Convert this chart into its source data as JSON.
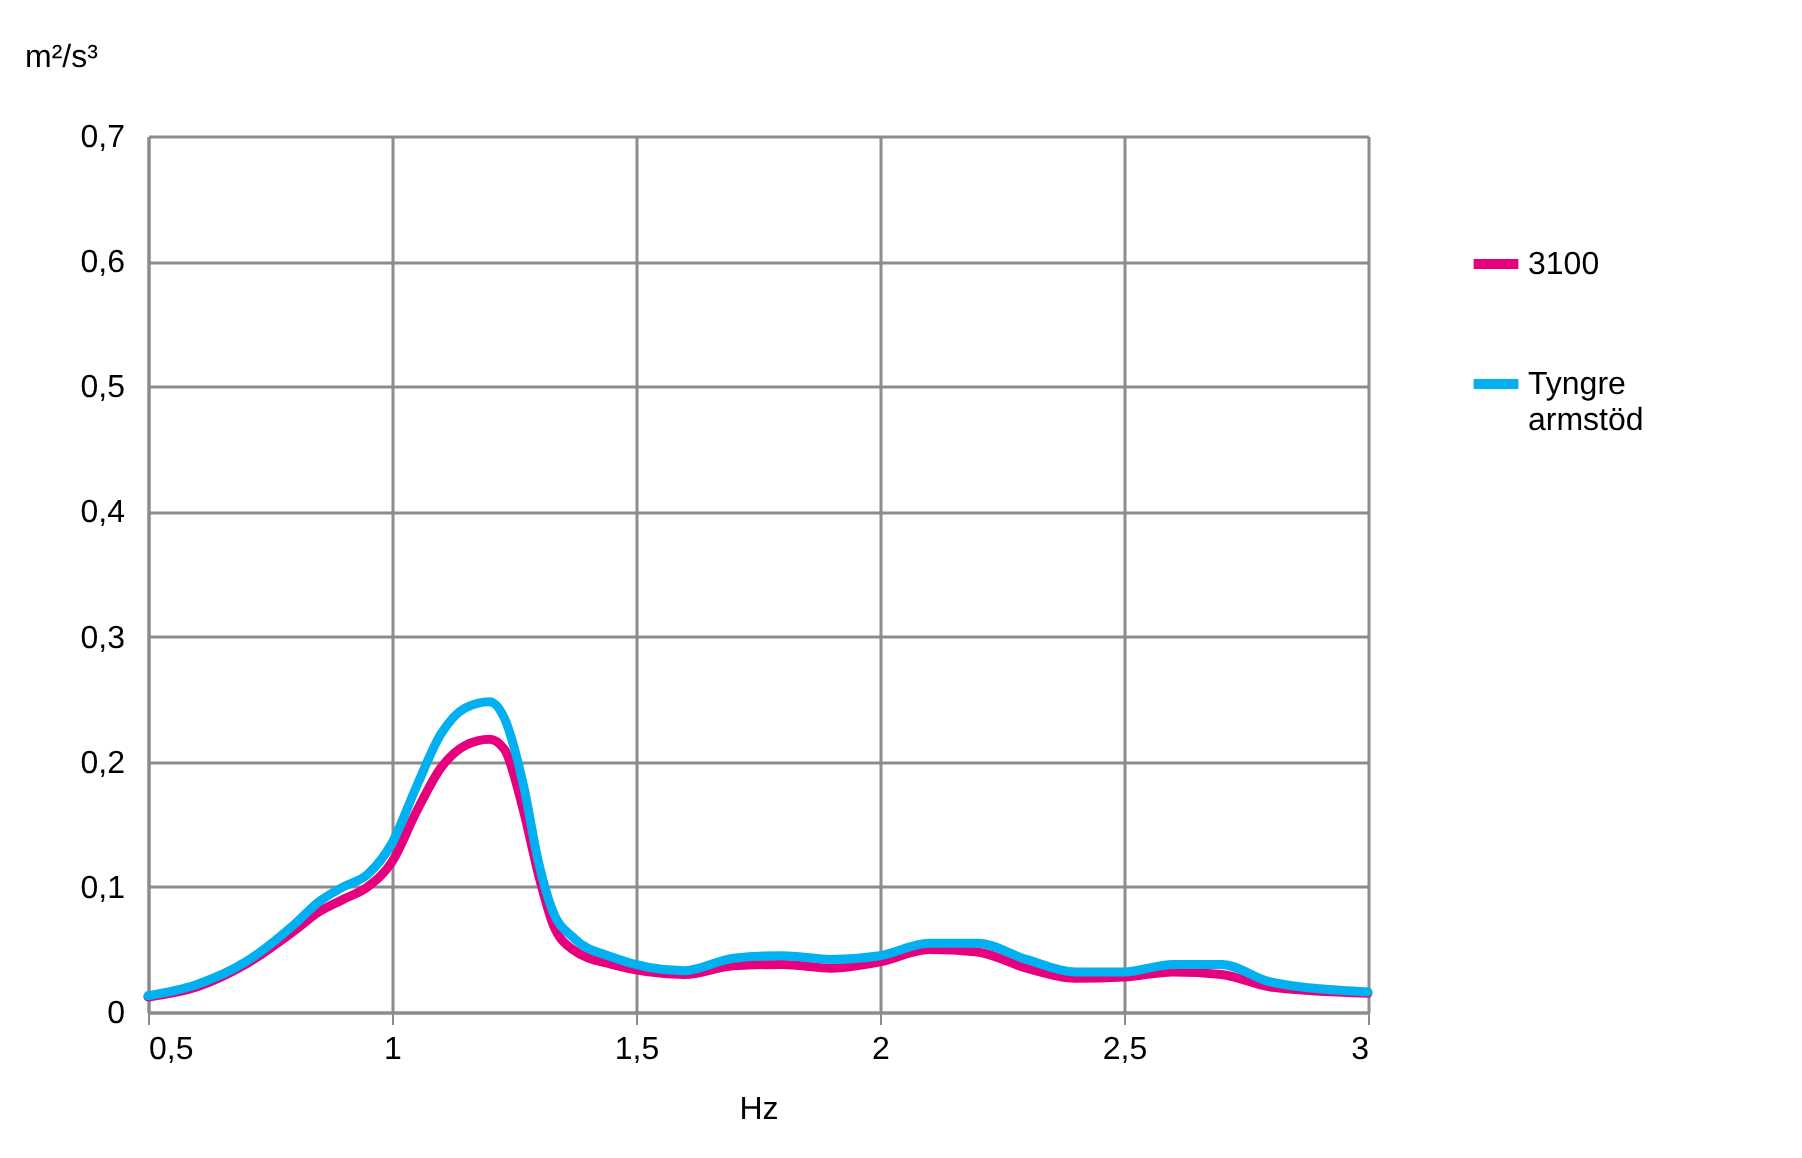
{
  "chart_data": {
    "type": "line",
    "xlabel": "Hz",
    "ylabel": "m²/s³",
    "x": [
      0.5,
      0.6,
      0.7,
      0.8,
      0.85,
      0.9,
      0.95,
      1.0,
      1.05,
      1.1,
      1.15,
      1.2,
      1.23,
      1.27,
      1.3,
      1.33,
      1.37,
      1.45,
      1.6,
      1.7,
      1.8,
      1.9,
      2.0,
      2.1,
      2.2,
      2.3,
      2.4,
      2.5,
      2.6,
      2.7,
      2.8,
      3.0
    ],
    "series": [
      {
        "name": "3100",
        "color": "#e6007e",
        "values": [
          0.012,
          0.02,
          0.038,
          0.065,
          0.08,
          0.09,
          0.1,
          0.12,
          0.16,
          0.195,
          0.213,
          0.218,
          0.21,
          0.16,
          0.11,
          0.07,
          0.05,
          0.038,
          0.03,
          0.037,
          0.038,
          0.035,
          0.04,
          0.05,
          0.048,
          0.035,
          0.027,
          0.028,
          0.032,
          0.03,
          0.02,
          0.015
        ]
      },
      {
        "name": "Tyngre armstöd",
        "color": "#00b0f0",
        "values": [
          0.013,
          0.022,
          0.04,
          0.07,
          0.088,
          0.1,
          0.11,
          0.135,
          0.18,
          0.222,
          0.243,
          0.248,
          0.235,
          0.18,
          0.12,
          0.08,
          0.06,
          0.044,
          0.033,
          0.043,
          0.045,
          0.042,
          0.045,
          0.055,
          0.055,
          0.042,
          0.032,
          0.032,
          0.038,
          0.038,
          0.024,
          0.016
        ]
      }
    ],
    "xlim": [
      0.5,
      3
    ],
    "xticks": [
      {
        "value": 0.5,
        "label": "0,5"
      },
      1,
      {
        "value": 1.5,
        "label": "1,5"
      },
      2,
      {
        "value": 2.5,
        "label": "2,5"
      },
      3
    ],
    "ylim": [
      0,
      0.7
    ],
    "yticks": [
      0,
      {
        "value": 0.1,
        "label": "0,1"
      },
      {
        "value": 0.2,
        "label": "0,2"
      },
      {
        "value": 0.3,
        "label": "0,3"
      },
      {
        "value": 0.4,
        "label": "0,4"
      },
      {
        "value": 0.5,
        "label": "0,5"
      },
      {
        "value": 0.6,
        "label": "0,6"
      },
      {
        "value": 0.7,
        "label": "0,7"
      }
    ],
    "grid": true,
    "legend": "right",
    "marker": "none",
    "line_style": "solid"
  }
}
